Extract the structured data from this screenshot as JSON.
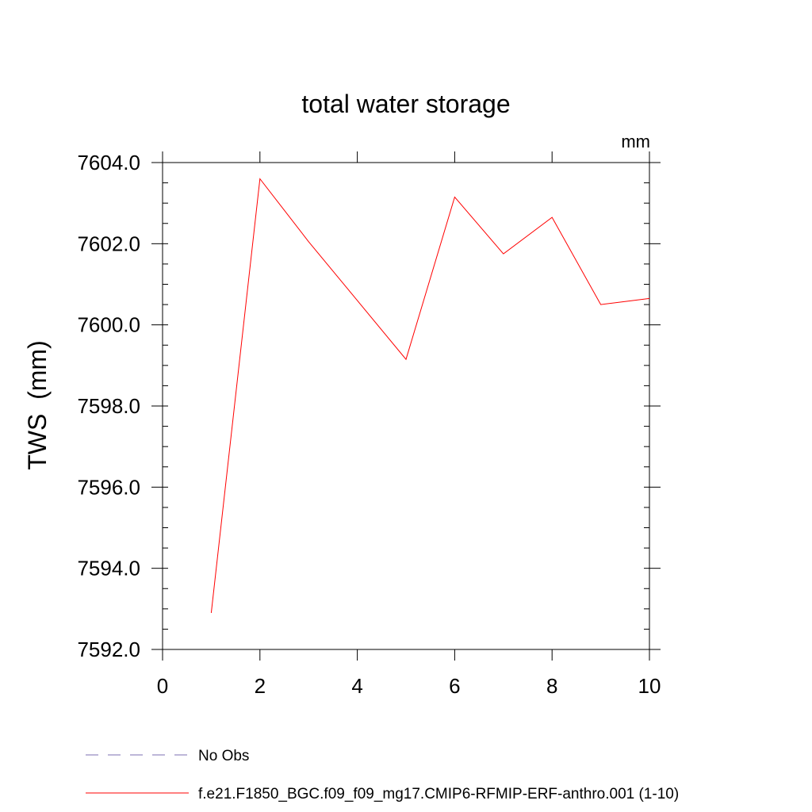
{
  "chart_data": {
    "type": "line",
    "title": "total water storage",
    "units_label": "mm",
    "xlabel": "",
    "ylabel": "TWS  (mm)",
    "xlim": [
      0,
      10
    ],
    "ylim": [
      7592.0,
      7604.0
    ],
    "x_ticks": [
      0,
      2,
      4,
      6,
      8,
      10
    ],
    "x_tick_labels": [
      "0",
      "2",
      "4",
      "6",
      "8",
      "10"
    ],
    "y_ticks": [
      7592.0,
      7594.0,
      7596.0,
      7598.0,
      7600.0,
      7602.0,
      7604.0
    ],
    "y_tick_labels": [
      "7592.0",
      "7594.0",
      "7596.0",
      "7598.0",
      "7600.0",
      "7602.0",
      "7604.0"
    ],
    "grid": false,
    "legend_position": "bottom",
    "series": [
      {
        "name": "No Obs",
        "color": "#7b6fb0",
        "style": "dashed",
        "x": [],
        "values": []
      },
      {
        "name": "f.e21.F1850_BGC.f09_f09_mg17.CMIP6-RFMIP-ERF-anthro.001 (1-10)",
        "color": "#ff0000",
        "style": "solid",
        "x": [
          1,
          2,
          3,
          4,
          5,
          6,
          7,
          8,
          9,
          10
        ],
        "values": [
          7592.9,
          7603.6,
          7602.05,
          7600.6,
          7599.15,
          7603.15,
          7601.75,
          7602.65,
          7600.5,
          7600.65
        ]
      }
    ]
  }
}
